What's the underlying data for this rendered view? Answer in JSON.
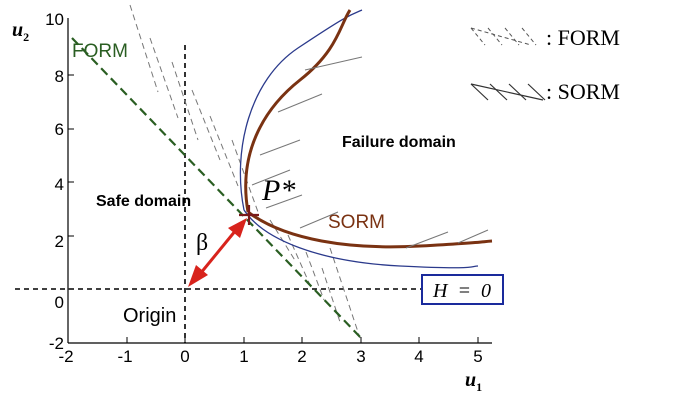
{
  "axes": {
    "x_label": "u",
    "x_label_sub": "1",
    "y_label": "u",
    "y_label_sub": "2",
    "x_ticks": [
      "-2",
      "-1",
      "0",
      "1",
      "2",
      "3",
      "4",
      "5"
    ],
    "y_ticks": [
      "-2",
      "0",
      "2",
      "4",
      "6",
      "8",
      "10"
    ]
  },
  "labels": {
    "form_curve": "FORM",
    "sorm_curve": "SORM",
    "safe_domain": "Safe domain",
    "failure_domain": "Failure domain",
    "design_point": "P*",
    "beta": "β",
    "origin": "Origin",
    "limit_state": "H  =  0"
  },
  "legend": {
    "form": ": FORM",
    "sorm": ": SORM"
  },
  "colors": {
    "form_line": "#2a5e22",
    "sorm_curve": "#7a3212",
    "limit_curve": "#2b3a8c",
    "beta_arrow": "#d8231c",
    "limit_box": "#1a2a9c",
    "hatch": "#777777",
    "axes": "#000000"
  }
}
